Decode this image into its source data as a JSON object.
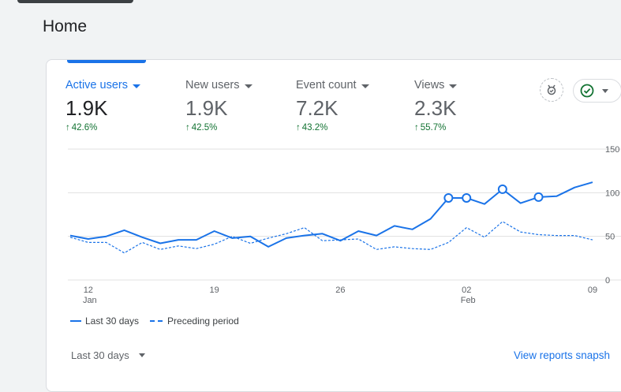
{
  "page": {
    "title": "Home"
  },
  "metrics": [
    {
      "label": "Active users",
      "value": "1.9K",
      "change": "42.6%"
    },
    {
      "label": "New users",
      "value": "1.9K",
      "change": "42.5%"
    },
    {
      "label": "Event count",
      "value": "7.2K",
      "change": "43.2%"
    },
    {
      "label": "Views",
      "value": "2.3K",
      "change": "55.7%"
    }
  ],
  "legend": {
    "current": "Last 30 days",
    "previous": "Preceding period"
  },
  "footer": {
    "date_range": "Last 30 days",
    "view_link": "View reports snapsh"
  },
  "colors": {
    "accent": "#1a73e8",
    "positive": "#137333"
  },
  "chart_data": {
    "type": "line",
    "x_ticks": [
      {
        "day": "12",
        "month": "Jan"
      },
      {
        "day": "19",
        "month": ""
      },
      {
        "day": "26",
        "month": ""
      },
      {
        "day": "02",
        "month": "Feb"
      },
      {
        "day": "09",
        "month": ""
      }
    ],
    "y_ticks": [
      "150",
      "100",
      "50",
      "0"
    ],
    "ylim": [
      0,
      150
    ],
    "grid": true,
    "legend_position": "bottom-left",
    "series": [
      {
        "name": "Last 30 days",
        "style": "solid",
        "values": [
          51,
          47,
          50,
          57,
          49,
          42,
          46,
          46,
          56,
          48,
          50,
          38,
          48,
          51,
          53,
          45,
          56,
          51,
          62,
          58,
          70,
          94,
          94,
          87,
          104,
          88,
          95,
          96,
          106,
          112
        ],
        "markers": [
          21,
          22,
          24,
          26
        ]
      },
      {
        "name": "Preceding period",
        "style": "dashed",
        "values": [
          49,
          43,
          43,
          31,
          43,
          35,
          39,
          36,
          41,
          50,
          42,
          48,
          53,
          60,
          45,
          46,
          47,
          35,
          38,
          36,
          35,
          43,
          60,
          49,
          67,
          55,
          52,
          51,
          51,
          46
        ]
      }
    ]
  }
}
